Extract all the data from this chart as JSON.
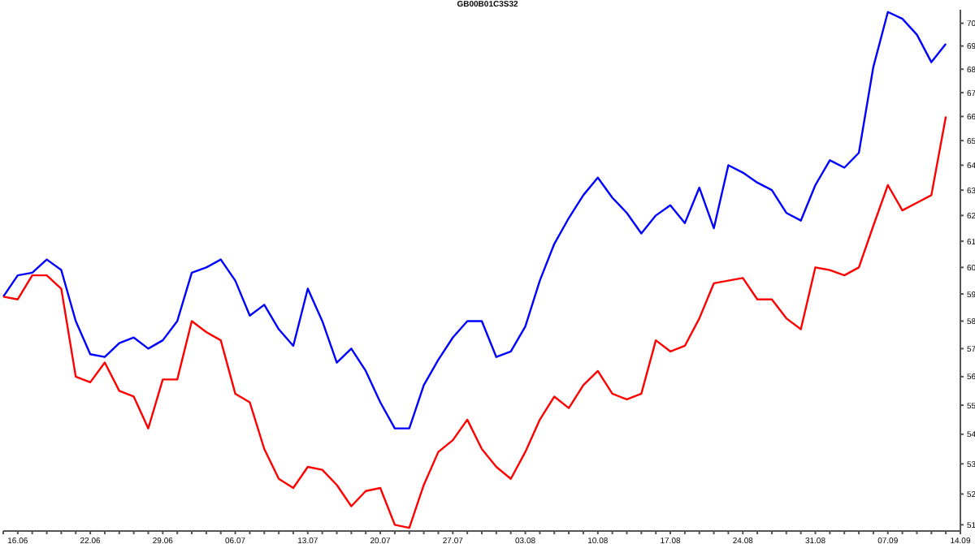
{
  "chart_data": {
    "type": "line",
    "title": "GB00B01C3S32",
    "categories": [
      null,
      "16.06",
      null,
      null,
      null,
      null,
      "22.06",
      null,
      null,
      null,
      null,
      "29.06",
      null,
      null,
      null,
      null,
      "06.07",
      null,
      null,
      null,
      null,
      "13.07",
      null,
      null,
      null,
      null,
      "20.07",
      null,
      null,
      null,
      null,
      "27.07",
      null,
      null,
      null,
      null,
      "03.08",
      null,
      null,
      null,
      null,
      "10.08",
      null,
      null,
      null,
      null,
      "17.08",
      null,
      null,
      null,
      null,
      "24.08",
      null,
      null,
      null,
      null,
      "31.08",
      null,
      null,
      null,
      null,
      "07.09",
      null,
      null,
      null,
      null,
      "14.09"
    ],
    "series": [
      {
        "color": "#0000ff",
        "values": [
          58.9,
          59.7,
          59.8,
          60.3,
          59.9,
          58.0,
          56.8,
          56.7,
          57.2,
          57.4,
          57.0,
          57.3,
          58.0,
          59.8,
          60.0,
          60.3,
          59.5,
          58.2,
          58.6,
          57.7,
          57.1,
          59.2,
          58.0,
          56.5,
          57.0,
          56.2,
          55.1,
          54.2,
          54.2,
          55.7,
          56.6,
          57.4,
          58.0,
          58.0,
          56.7,
          56.9,
          57.8,
          59.5,
          60.9,
          61.9,
          62.8,
          63.5,
          62.7,
          62.1,
          61.3,
          62.0,
          62.4,
          61.7,
          63.1,
          61.5,
          64.0,
          63.7,
          63.3,
          63.0,
          62.1,
          61.8,
          63.2,
          64.2,
          63.9,
          64.5,
          68.1,
          70.5,
          70.2,
          69.5,
          68.3,
          69.1,
          null
        ]
      },
      {
        "color": "#ff0000",
        "values": [
          58.9,
          58.8,
          59.7,
          59.7,
          59.2,
          56.0,
          55.8,
          56.5,
          55.5,
          55.3,
          54.2,
          55.9,
          55.9,
          58.0,
          57.6,
          57.3,
          55.4,
          55.1,
          53.5,
          52.5,
          52.2,
          52.9,
          52.8,
          52.3,
          51.6,
          52.1,
          52.2,
          51.0,
          50.9,
          52.3,
          53.4,
          53.8,
          54.5,
          53.5,
          52.9,
          52.5,
          53.4,
          54.5,
          55.3,
          54.9,
          55.7,
          56.2,
          55.4,
          55.2,
          55.4,
          57.3,
          56.9,
          57.1,
          58.1,
          59.4,
          59.5,
          59.6,
          58.8,
          58.8,
          58.1,
          57.7,
          60.0,
          59.9,
          59.7,
          60.0,
          61.6,
          63.2,
          62.2,
          62.5,
          62.8,
          66.0,
          null
        ]
      }
    ],
    "ylim": [
      50.8,
      70.6
    ],
    "yticks": [
      51,
      52,
      53,
      54,
      55,
      56,
      57,
      58,
      59,
      60,
      61,
      62,
      63,
      64,
      65,
      66,
      67,
      68,
      69,
      70
    ],
    "log": true,
    "marker": "none",
    "line_style": "solid"
  }
}
